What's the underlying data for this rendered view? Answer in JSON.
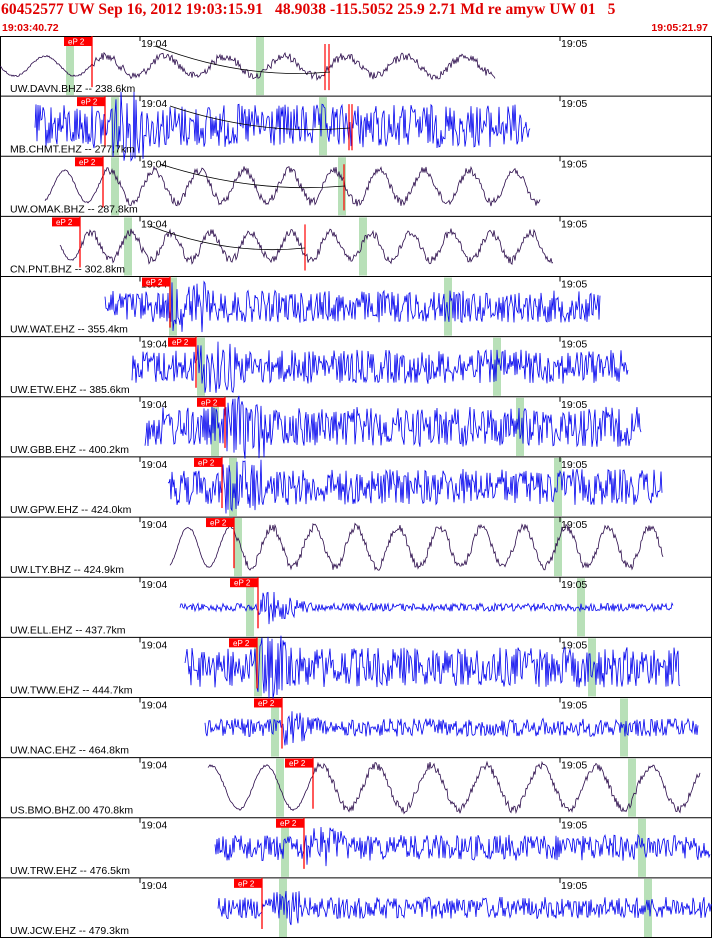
{
  "header": {
    "title": "60452577 UW Sep 16, 2012 19:03:15.91   48.9038 -115.5052 25.9 2.71 Md re amyw UW 01   5",
    "time_start": "19:03:40.72",
    "time_end": "19:05:21.97"
  },
  "chart_data": {
    "type": "line",
    "x_range": [
      "19:03:40.72",
      "19:05:21.97"
    ],
    "time_ticks": [
      "19:04",
      "19:05"
    ],
    "pick_label": "eP 2",
    "colors": {
      "trace_bb": "#2a0a4a",
      "trace_sp": "#0000ee",
      "pick": "#ff0000",
      "phase": "#b8e0b8"
    },
    "series": [
      {
        "name": "UW.DAVN.BHZ -- 238.6km",
        "kind": "bb"
      },
      {
        "name": "MB.CHMT.EHZ -- 277.7km",
        "kind": "sp"
      },
      {
        "name": "UW.OMAK.BHZ -- 287.8km",
        "kind": "bb"
      },
      {
        "name": "CN.PNT.BHZ -- 302.8km",
        "kind": "bb"
      },
      {
        "name": "UW.WAT.EHZ -- 355.4km",
        "kind": "sp"
      },
      {
        "name": "UW.ETW.EHZ -- 385.6km",
        "kind": "sp"
      },
      {
        "name": "UW.GBB.EHZ -- 400.2km",
        "kind": "sp"
      },
      {
        "name": "UW.GPW.EHZ -- 424.0km",
        "kind": "sp"
      },
      {
        "name": "UW.LTY.BHZ -- 424.9km",
        "kind": "bb"
      },
      {
        "name": "UW.ELL.EHZ -- 437.7km",
        "kind": "sp"
      },
      {
        "name": "UW.TWW.EHZ -- 444.7km",
        "kind": "sp"
      },
      {
        "name": "UW.NAC.EHZ -- 464.8km",
        "kind": "sp"
      },
      {
        "name": "US.BMO.BHZ.00 470.8km",
        "kind": "bb"
      },
      {
        "name": "UW.TRW.EHZ -- 476.5km",
        "kind": "sp"
      },
      {
        "name": "UW.JCW.EHZ -- 479.3km",
        "kind": "sp"
      }
    ]
  }
}
